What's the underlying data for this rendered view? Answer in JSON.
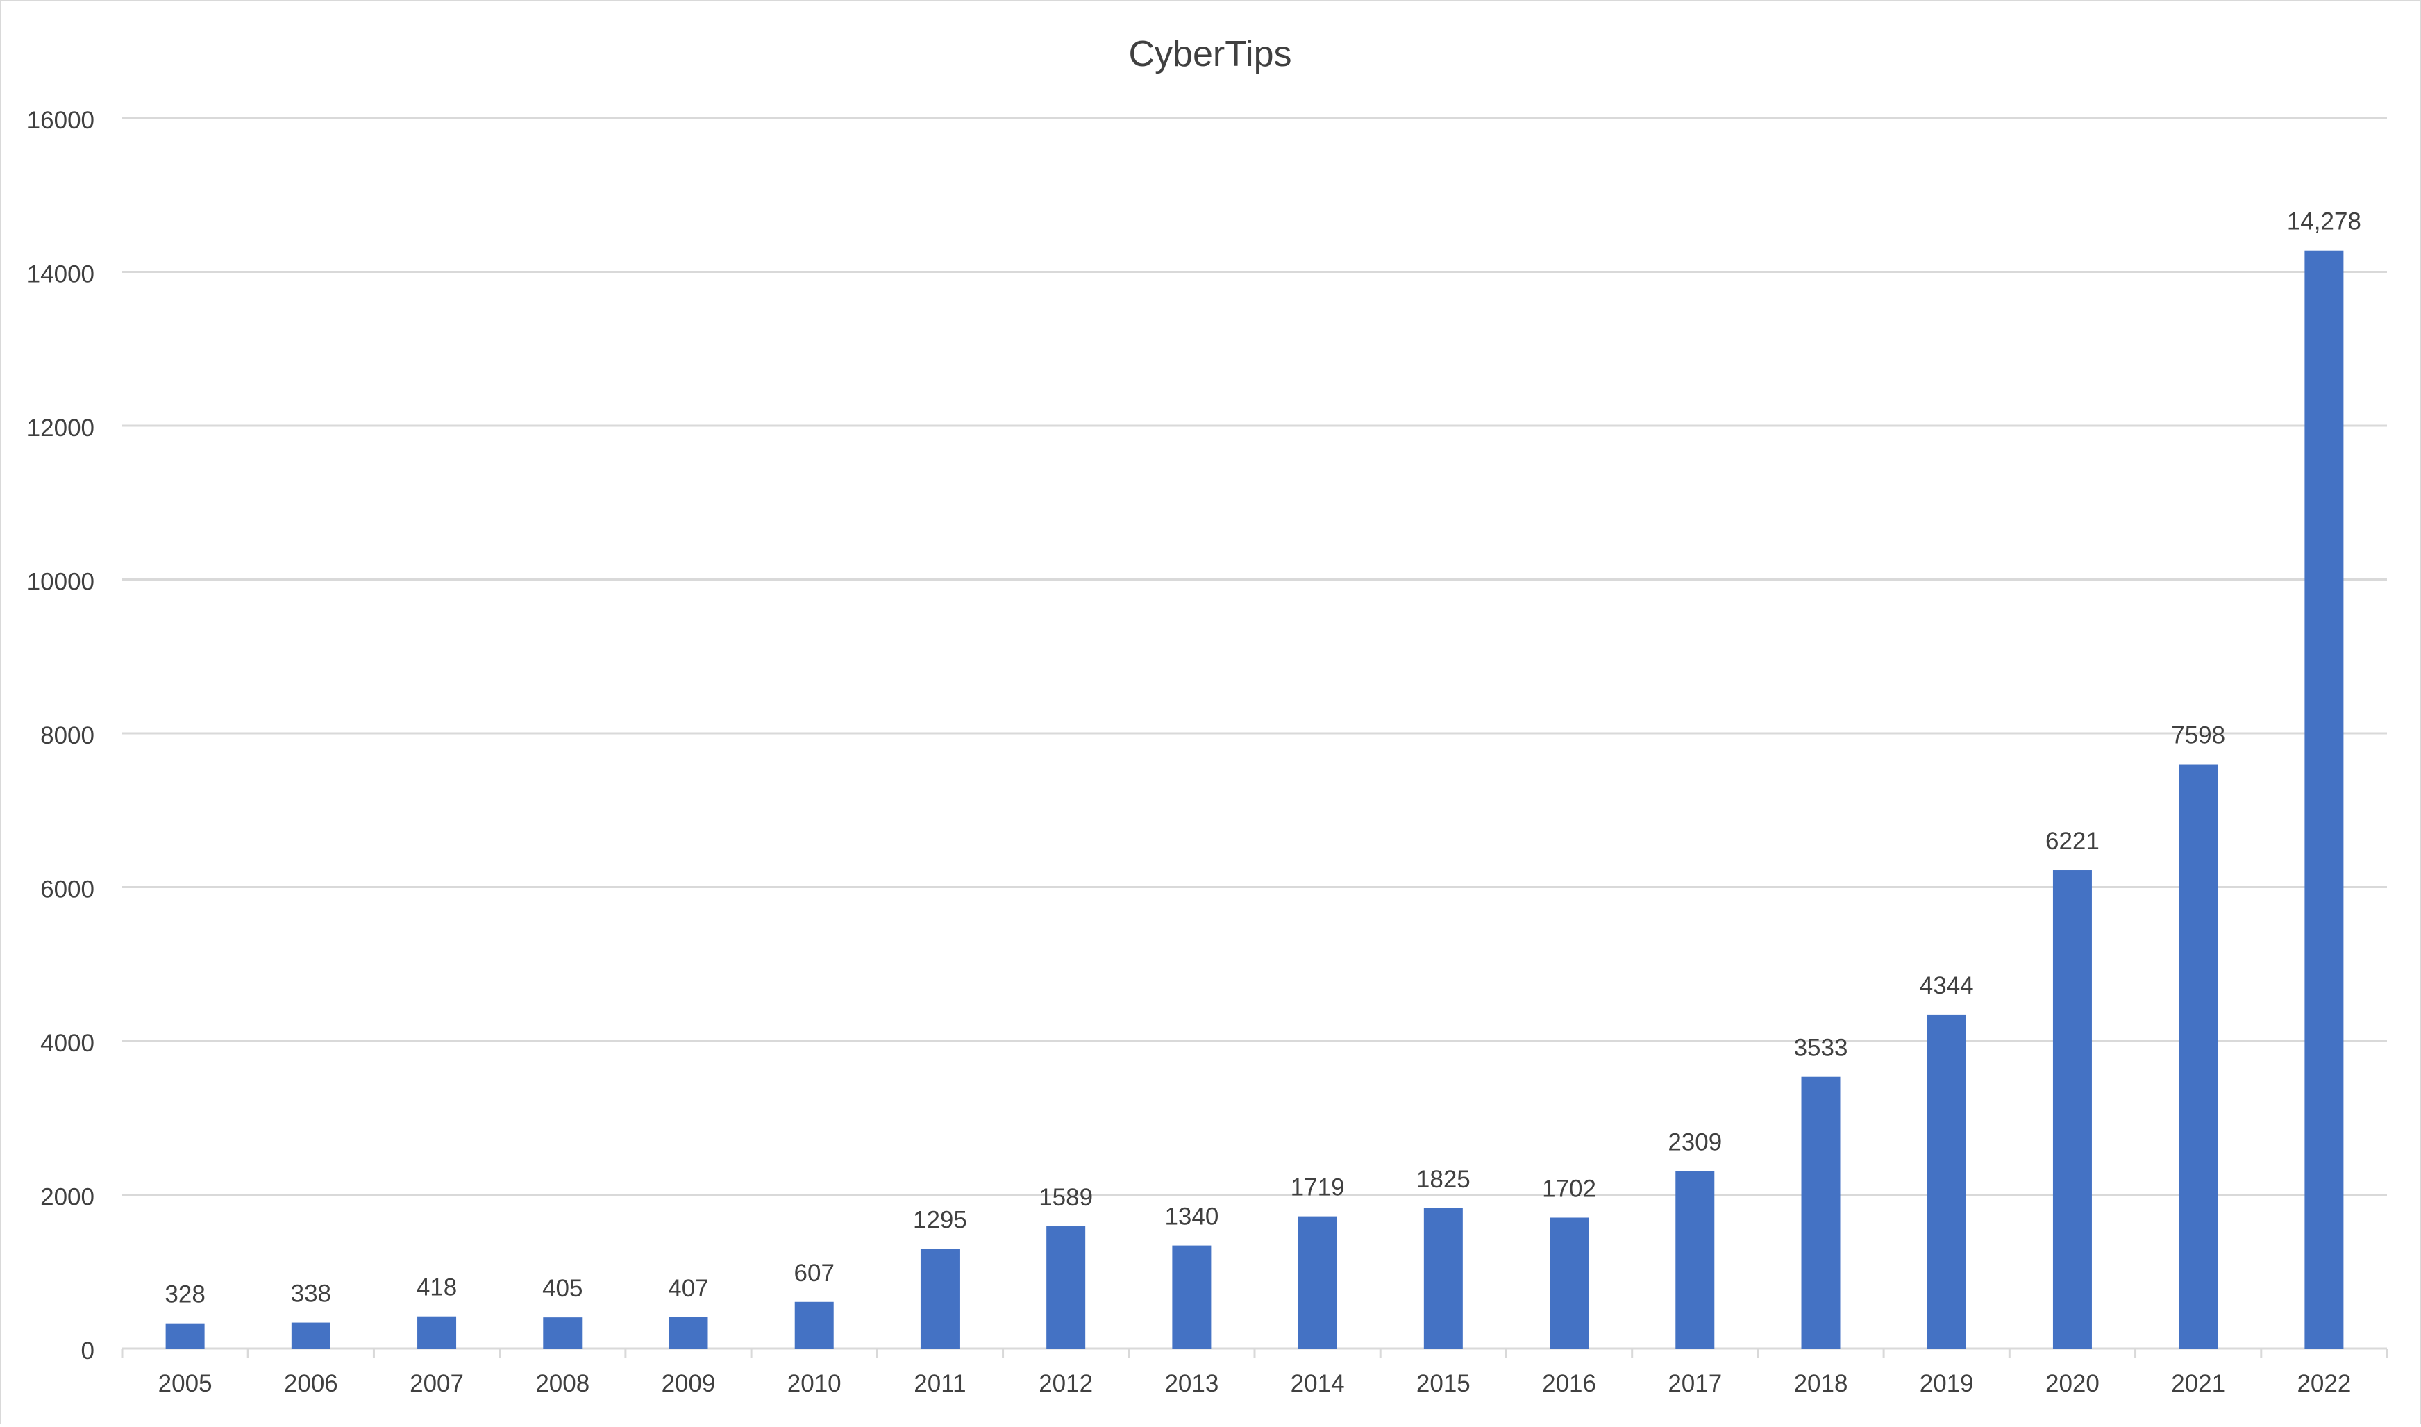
{
  "chart_data": {
    "type": "bar",
    "title": "CyberTips",
    "categories": [
      "2005",
      "2006",
      "2007",
      "2008",
      "2009",
      "2010",
      "2011",
      "2012",
      "2013",
      "2014",
      "2015",
      "2016",
      "2017",
      "2018",
      "2019",
      "2020",
      "2021",
      "2022"
    ],
    "values": [
      328,
      338,
      418,
      405,
      407,
      607,
      1295,
      1589,
      1340,
      1719,
      1825,
      1702,
      2309,
      3533,
      4344,
      6221,
      7598,
      14278
    ],
    "data_labels": [
      "328",
      "338",
      "418",
      "405",
      "407",
      "607",
      "1295",
      "1589",
      "1340",
      "1719",
      "1825",
      "1702",
      "2309",
      "3533",
      "4344",
      "6221",
      "7598",
      "14,278"
    ],
    "y_ticks": [
      "0",
      "2000",
      "4000",
      "6000",
      "8000",
      "10000",
      "12000",
      "14000",
      "16000"
    ],
    "ylim": [
      0,
      16000
    ],
    "xlabel": "",
    "ylabel": "",
    "grid": true,
    "legend": "none",
    "bar_color": "#4472c4",
    "gridline_color": "#d9d9d9",
    "text_color": "#404040"
  }
}
